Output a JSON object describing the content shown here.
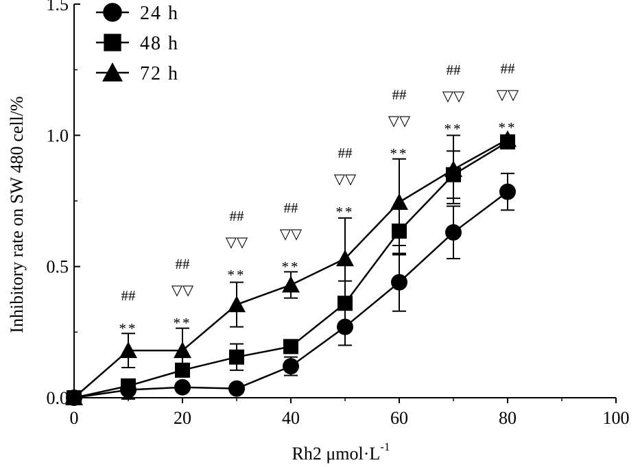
{
  "chart_data": {
    "type": "line",
    "title": "",
    "xlabel": "Rh2 μmol·L",
    "xlabel_superscript": "-1",
    "ylabel": "Inhibitory rate on SW 480 cell/%",
    "xlim": [
      0,
      100
    ],
    "ylim": [
      0,
      1.5
    ],
    "x_ticks": [
      0,
      20,
      40,
      60,
      80,
      100
    ],
    "y_ticks": [
      0.0,
      0.5,
      1.0,
      1.5
    ],
    "x_tick_labels": [
      "0",
      "20",
      "40",
      "60",
      "80",
      "100"
    ],
    "y_tick_labels": [
      "0.0",
      "0.5",
      "1.0",
      "1.5"
    ],
    "legend_position": "top-left",
    "x": [
      0,
      10,
      20,
      30,
      40,
      50,
      60,
      70,
      80
    ],
    "series": [
      {
        "name": "24 h",
        "marker": "circle",
        "values": [
          0.0,
          0.03,
          0.04,
          0.035,
          0.12,
          0.27,
          0.44,
          0.63,
          0.785
        ],
        "errors": [
          0,
          0.035,
          0,
          0,
          0.035,
          0.07,
          0.11,
          0.1,
          0.07
        ]
      },
      {
        "name": "48 h",
        "marker": "square",
        "values": [
          0.0,
          0.045,
          0.105,
          0.155,
          0.195,
          0.36,
          0.635,
          0.85,
          0.975
        ],
        "errors": [
          0,
          0,
          0.02,
          0.05,
          0.025,
          0.085,
          0.09,
          0.09,
          0
        ]
      },
      {
        "name": "72 h",
        "marker": "triangle",
        "values": [
          0.0,
          0.18,
          0.18,
          0.355,
          0.43,
          0.53,
          0.745,
          0.87,
          0.985
        ],
        "errors": [
          0,
          0.065,
          0.085,
          0.085,
          0.05,
          0.155,
          0.165,
          0.13,
          0
        ]
      }
    ],
    "annotations": [
      {
        "x": 10,
        "rows": [
          "##",
          "**"
        ]
      },
      {
        "x": 20,
        "rows": [
          "##",
          "▽▽",
          "**"
        ]
      },
      {
        "x": 30,
        "rows": [
          "##",
          "▽▽",
          "**"
        ]
      },
      {
        "x": 40,
        "rows": [
          "##",
          "▽▽",
          "**"
        ]
      },
      {
        "x": 50,
        "rows": [
          "##",
          "▽▽",
          "**"
        ]
      },
      {
        "x": 60,
        "rows": [
          "##",
          "▽▽",
          "**"
        ]
      },
      {
        "x": 70,
        "rows": [
          "##",
          "▽▽",
          "**"
        ]
      },
      {
        "x": 80,
        "rows": [
          "##",
          "▽▽",
          "**"
        ]
      }
    ]
  }
}
